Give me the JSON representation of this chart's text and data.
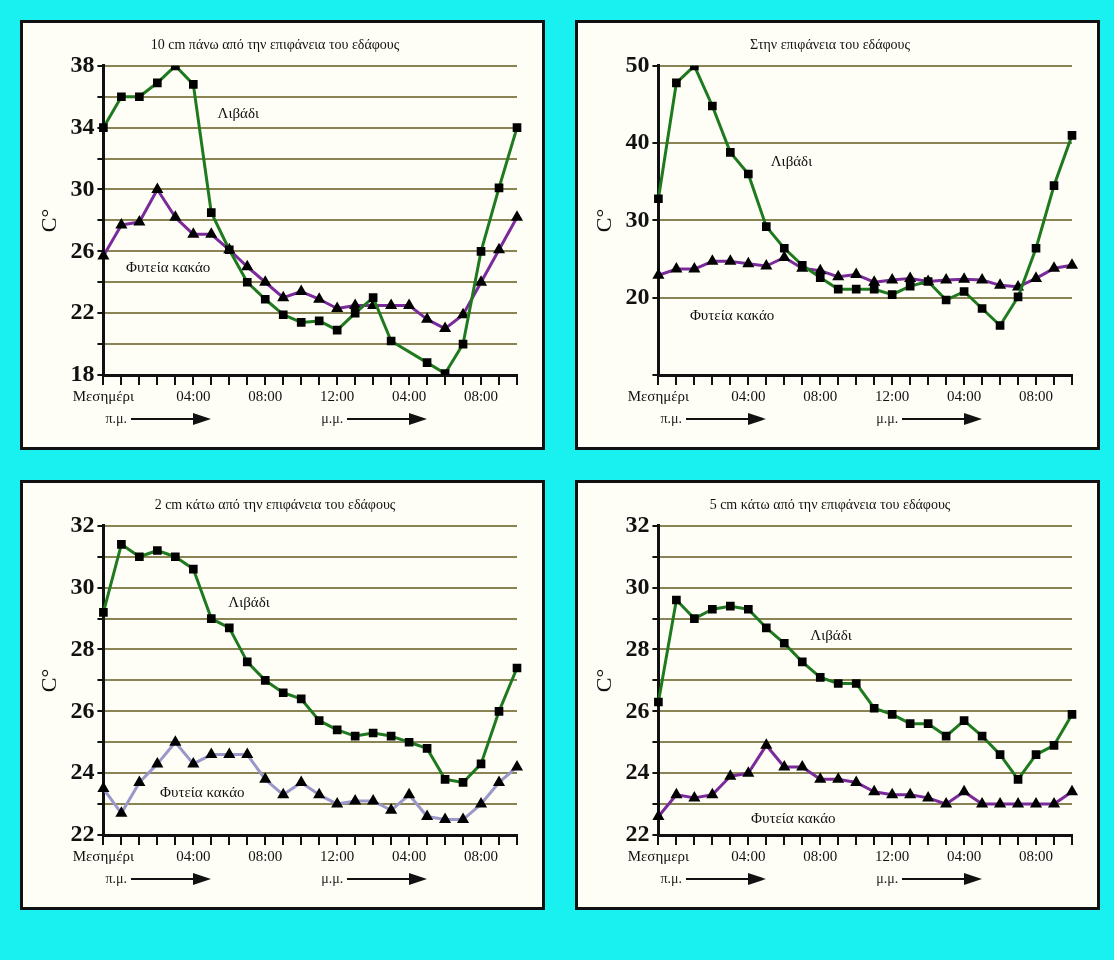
{
  "chart_data": [
    {
      "type": "line",
      "title": "10 cm πάνω από την επιφάνεια του εδάφους",
      "ylabel": "C°",
      "categories": [
        "Μεσημέρι",
        null,
        null,
        null,
        null,
        "04:00",
        null,
        null,
        null,
        "08:00",
        null,
        null,
        null,
        "12:00",
        null,
        null,
        null,
        "04:00",
        null,
        null,
        null,
        "08:00",
        null,
        null
      ],
      "series": [
        {
          "name": "Λιβάδι",
          "color": "#1f7a1f",
          "marker": "square",
          "values": [
            34,
            36,
            36,
            36.9,
            38,
            36.8,
            28.5,
            26.1,
            24,
            22.9,
            21.9,
            21.4,
            21.5,
            20.9,
            22,
            23,
            20.2,
            null,
            18.8,
            18.1,
            20,
            26,
            30.1,
            34
          ]
        },
        {
          "name": "Φυτεία κακάο",
          "color": "#7a2a9a",
          "marker": "triangle",
          "values": [
            25.7,
            27.7,
            27.9,
            30,
            28.2,
            27.1,
            27.1,
            26.1,
            25,
            24,
            23,
            23.4,
            22.9,
            22.3,
            22.5,
            22.5,
            22.5,
            22.5,
            21.6,
            21,
            21.9,
            24,
            26.1,
            28.2
          ]
        }
      ],
      "ylim": [
        18,
        38
      ],
      "yticks": [
        18,
        {
          "value": 20,
          "label": null
        },
        22,
        {
          "value": 24,
          "label": null
        },
        26,
        {
          "value": 28,
          "label": null
        },
        30,
        {
          "value": 32,
          "label": null
        },
        34,
        {
          "value": 36,
          "label": null
        },
        38
      ],
      "grid": "y",
      "annotations": [
        "π.μ.",
        "μ.μ."
      ]
    },
    {
      "type": "line",
      "title": "Στην επιφάνεια του εδάφους",
      "ylabel": "C°",
      "categories": [
        "Μεσημέρι",
        null,
        null,
        null,
        null,
        "04:00",
        null,
        null,
        null,
        "08:00",
        null,
        null,
        null,
        "12:00",
        null,
        null,
        null,
        "04:00",
        null,
        null,
        null,
        "08:00",
        null,
        null
      ],
      "series": [
        {
          "name": "Λιβάδι",
          "color": "#1f7a1f",
          "marker": "square",
          "values": [
            32.8,
            47.8,
            50,
            44.8,
            38.8,
            36,
            29.2,
            26.4,
            24.2,
            22.6,
            21.1,
            21.1,
            21.1,
            20.4,
            21.5,
            22.1,
            19.7,
            20.8,
            18.6,
            16.4,
            20.1,
            26.4,
            34.5,
            41
          ]
        },
        {
          "name": "Φυτεία κακάο",
          "color": "#7a2a9a",
          "marker": "triangle",
          "values": [
            22.9,
            23.7,
            23.7,
            24.7,
            24.7,
            24.4,
            24.1,
            25.2,
            23.8,
            23.5,
            22.7,
            23,
            22,
            22.3,
            22.5,
            22.1,
            22.3,
            22.4,
            22.3,
            21.6,
            21.4,
            22.5,
            23.8,
            24.2
          ]
        }
      ],
      "ylim": [
        10,
        50
      ],
      "yticks": [
        {
          "value": 10,
          "label": null
        },
        20,
        30,
        40,
        50
      ],
      "grid": "y",
      "annotations": [
        "π.μ.",
        "μ.μ."
      ]
    },
    {
      "type": "line",
      "title": "2 cm κάτω από την επιφάνεια του εδάφους",
      "ylabel": "C°",
      "categories": [
        "Μεσημέρι",
        null,
        null,
        null,
        null,
        "04:00",
        null,
        null,
        null,
        "08:00",
        null,
        null,
        null,
        "12:00",
        null,
        null,
        null,
        "04:00",
        null,
        null,
        null,
        "08:00",
        null,
        null
      ],
      "series": [
        {
          "name": "Λιβάδι",
          "color": "#1f7a1f",
          "marker": "square",
          "values": [
            29.2,
            31.4,
            31,
            31.2,
            31,
            30.6,
            29,
            28.7,
            27.6,
            27,
            26.6,
            26.4,
            25.7,
            25.4,
            25.2,
            25.3,
            25.2,
            25,
            24.8,
            23.8,
            23.7,
            24.3,
            26,
            27.4
          ]
        },
        {
          "name": "Φυτεία κακάο",
          "color": "#9a97c9",
          "marker": "triangle",
          "values": [
            23.5,
            22.7,
            23.7,
            24.3,
            25,
            24.3,
            24.6,
            24.6,
            24.6,
            23.8,
            23.3,
            23.7,
            23.3,
            23,
            23.1,
            23.1,
            22.8,
            23.3,
            22.6,
            22.5,
            22.5,
            23,
            23.7,
            24.2
          ]
        }
      ],
      "ylim": [
        22,
        32
      ],
      "yticks": [
        22,
        {
          "value": 23,
          "label": null
        },
        24,
        {
          "value": 25,
          "label": null
        },
        26,
        {
          "value": 27,
          "label": null
        },
        28,
        {
          "value": 29,
          "label": null
        },
        30,
        {
          "value": 31,
          "label": null
        },
        32
      ],
      "grid": "y",
      "annotations": [
        "π.μ.",
        "μ.μ."
      ]
    },
    {
      "type": "line",
      "title": "5 cm κάτω από την επιφάνεια του εδάφους",
      "ylabel": "C°",
      "categories": [
        "Μεσημερι",
        null,
        null,
        null,
        null,
        "04:00",
        null,
        null,
        null,
        "08:00",
        null,
        null,
        null,
        "12:00",
        null,
        null,
        null,
        "04:00",
        null,
        null,
        null,
        "08:00",
        null,
        null
      ],
      "series": [
        {
          "name": "Λιβάδι",
          "color": "#1f7a1f",
          "marker": "square",
          "values": [
            26.3,
            29.6,
            29,
            29.3,
            29.4,
            29.3,
            28.7,
            28.2,
            27.6,
            27.1,
            26.9,
            26.9,
            26.1,
            25.9,
            25.6,
            25.6,
            25.2,
            25.7,
            25.2,
            24.6,
            23.8,
            24.6,
            24.9,
            25.9
          ]
        },
        {
          "name": "Φυτεία κακάο",
          "color": "#7a2a9a",
          "marker": "triangle",
          "values": [
            22.6,
            23.3,
            23.2,
            23.3,
            23.9,
            24,
            24.9,
            24.2,
            24.2,
            23.8,
            23.8,
            23.7,
            23.4,
            23.3,
            23.3,
            23.2,
            23,
            23.4,
            23,
            23,
            23,
            23,
            23,
            23.4
          ]
        }
      ],
      "ylim": [
        22,
        32
      ],
      "yticks": [
        22,
        {
          "value": 23,
          "label": null
        },
        24,
        {
          "value": 25,
          "label": null
        },
        26,
        {
          "value": 27,
          "label": null
        },
        28,
        {
          "value": 29,
          "label": null
        },
        30,
        {
          "value": 31,
          "label": null
        },
        32
      ],
      "grid": "y",
      "annotations": [
        "π.μ.",
        "μ.μ."
      ]
    }
  ]
}
